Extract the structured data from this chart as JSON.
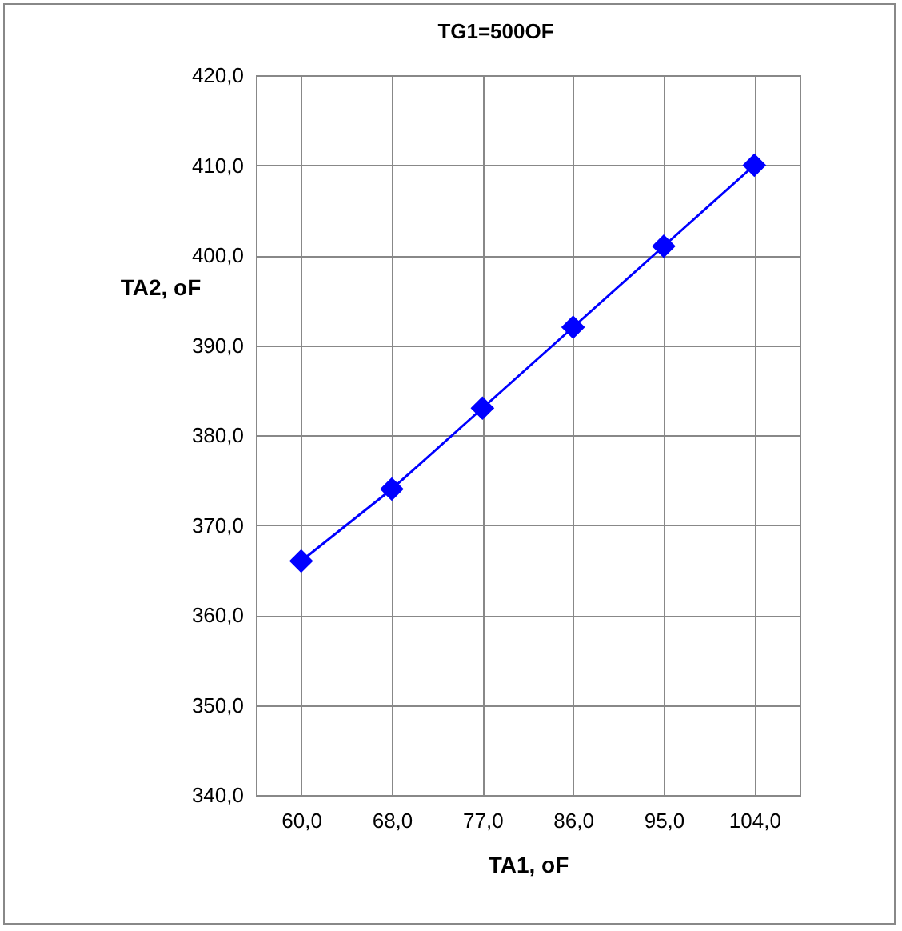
{
  "chart_data": {
    "type": "line",
    "title": "TG1=500OF",
    "xlabel": "TA1, oF",
    "ylabel": "TA2, oF",
    "categories": [
      "60,0",
      "68,0",
      "77,0",
      "86,0",
      "95,0",
      "104,0"
    ],
    "series": [
      {
        "color": "#0000ff",
        "values": [
          366,
          374,
          383,
          392,
          401,
          410
        ]
      }
    ],
    "ylim": [
      340,
      420
    ],
    "yticks": [
      {
        "value": 340,
        "label": "340,0"
      },
      {
        "value": 350,
        "label": "350,0"
      },
      {
        "value": 360,
        "label": "360,0"
      },
      {
        "value": 370,
        "label": "370,0"
      },
      {
        "value": 380,
        "label": "380,0"
      },
      {
        "value": 390,
        "label": "390,0"
      },
      {
        "value": 400,
        "label": "400,0"
      },
      {
        "value": 410,
        "label": "410,0"
      },
      {
        "value": 420,
        "label": "420,0"
      }
    ],
    "grid": true,
    "marker": "diamond",
    "line_style": "solid",
    "legend": false
  }
}
